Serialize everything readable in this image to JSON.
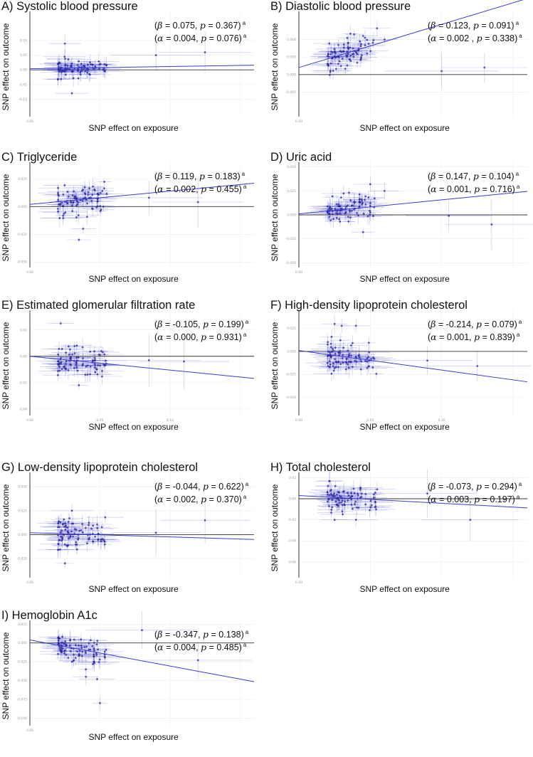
{
  "chart_data": [
    {
      "type": "scatter",
      "panel": "A",
      "title": "A) Systolic blood pressure",
      "xlabel": "SNP effect on exposure",
      "ylabel": "SNP effect on outcome",
      "stat_beta": "(β = 0.075, p = 0.367)",
      "stat_alpha": "(α = 0.004, p = 0.076)",
      "stat_mark": "a",
      "xlim": [
        0,
        0.16
      ],
      "ylim": [
        -0.16,
        0.2
      ],
      "x_ticks": [
        "0.00"
      ],
      "y_ticks": [
        "0.10",
        "0.05",
        "0.00",
        "-0.05",
        "-0.10"
      ],
      "y_tick_values": [
        0.1,
        0.05,
        0,
        -0.05,
        -0.1
      ],
      "intercept": 0.004,
      "slope": 0.075,
      "spread": 0.015,
      "seed": 11,
      "outliers": [
        [
          0.025,
          0.09
        ],
        [
          0.03,
          -0.08
        ],
        [
          0.09,
          0.05
        ],
        [
          0.125,
          0.06
        ]
      ]
    },
    {
      "type": "scatter",
      "panel": "B",
      "title": "B) Diastolic blood pressure",
      "xlabel": "SNP effect on exposure",
      "ylabel": "SNP effect on outcome",
      "stat_beta": "(β = 0.123, p = 0.091)",
      "stat_alpha": "(α = 0.002 , p = 0.338)",
      "stat_mark": "a",
      "xlim": [
        0,
        0.16
      ],
      "ylim": [
        -0.012,
        0.018
      ],
      "x_ticks": [
        "0.00"
      ],
      "y_ticks": [
        "0.010",
        "0.005",
        "0.000",
        "-0.005"
      ],
      "y_tick_values": [
        0.01,
        0.005,
        0,
        -0.005
      ],
      "intercept": 0.002,
      "slope": 0.123,
      "spread": 0.002,
      "seed": 23,
      "outliers": [
        [
          0.06,
          0.01
        ],
        [
          0.045,
          0.011
        ],
        [
          0.1,
          0.001
        ],
        [
          0.13,
          0.002
        ]
      ]
    },
    {
      "type": "scatter",
      "panel": "C",
      "title": "C) Triglyceride",
      "xlabel": "SNP effect on exposure",
      "ylabel": "SNP effect on outcome",
      "stat_beta": "(β = 0.119, p = 0.183)",
      "stat_alpha": "(α = 0.002, p = 0.455)",
      "stat_mark": "a",
      "xlim": [
        0,
        0.16
      ],
      "ylim": [
        -0.055,
        0.04
      ],
      "x_ticks": [
        "0.00"
      ],
      "y_ticks": [
        "0.025",
        "0.000",
        "-0.025",
        "-0.050"
      ],
      "y_tick_values": [
        0.025,
        0,
        -0.025,
        -0.05
      ],
      "intercept": 0.002,
      "slope": 0.119,
      "spread": 0.006,
      "seed": 37,
      "outliers": [
        [
          0.035,
          -0.03
        ],
        [
          0.038,
          -0.02
        ],
        [
          0.045,
          0.018
        ],
        [
          0.085,
          0.008
        ],
        [
          0.12,
          0.004
        ]
      ]
    },
    {
      "type": "scatter",
      "panel": "D",
      "title": "D) Uric acid",
      "xlabel": "SNP effect on exposure",
      "ylabel": "SNP effect on outcome",
      "stat_beta": "(β = 0.147, p = 0.104)",
      "stat_alpha": "(α = 0.001, p = 0.716)",
      "stat_mark": "a",
      "xlim": [
        0,
        0.16
      ],
      "ylim": [
        -0.055,
        0.055
      ],
      "x_ticks": [
        "0.00"
      ],
      "y_ticks": [
        "0.050",
        "0.025",
        "0.000",
        "-0.025",
        "-0.050"
      ],
      "y_tick_values": [
        0.05,
        0.025,
        0,
        -0.025,
        -0.05
      ],
      "intercept": 0.001,
      "slope": 0.147,
      "spread": 0.007,
      "seed": 41,
      "outliers": [
        [
          0.05,
          0.032
        ],
        [
          0.045,
          -0.018
        ],
        [
          0.06,
          0.025
        ],
        [
          0.105,
          -0.001
        ],
        [
          0.135,
          -0.01
        ]
      ]
    },
    {
      "type": "scatter",
      "panel": "E",
      "title": "E) Estimated glomerular filtration rate",
      "xlabel": "SNP effect on exposure",
      "ylabel": "SNP effect on outcome",
      "stat_beta": "(β = -0.105, p = 0.199)",
      "stat_alpha": "(α = 0.000, p = 0.931)",
      "stat_mark": "a",
      "xlim": [
        0,
        0.16
      ],
      "ylim": [
        -0.045,
        0.035
      ],
      "x_ticks": [
        "0.00",
        "0.05",
        "0.10"
      ],
      "x_tick_values": [
        0,
        0.05,
        0.1
      ],
      "y_ticks": [
        "0.02",
        "0.00",
        "-0.02",
        "-0.04"
      ],
      "y_tick_values": [
        0.02,
        0,
        -0.02,
        -0.04
      ],
      "intercept": 0.0,
      "slope": -0.105,
      "spread": 0.005,
      "seed": 53,
      "outliers": [
        [
          0.022,
          0.025
        ],
        [
          0.035,
          -0.022
        ],
        [
          0.05,
          0.001
        ],
        [
          0.085,
          -0.003
        ],
        [
          0.11,
          -0.004
        ]
      ]
    },
    {
      "type": "scatter",
      "panel": "F",
      "title": "F) High-density lipoprotein cholesterol",
      "xlabel": "SNP effect on exposure",
      "ylabel": "SNP effect on outcome",
      "stat_beta": "(β = -0.214, p = 0.079)",
      "stat_alpha": "(α = 0.001, p = 0.839)",
      "stat_mark": "a",
      "xlim": [
        0,
        0.16
      ],
      "ylim": [
        -0.07,
        0.045
      ],
      "x_ticks": [
        "0.00",
        "0.05",
        "0.10"
      ],
      "x_tick_values": [
        0,
        0.05,
        0.1
      ],
      "y_ticks": [
        "0.025",
        "0.000",
        "-0.025",
        "-0.050"
      ],
      "y_tick_values": [
        0.025,
        0,
        -0.025,
        -0.05
      ],
      "intercept": 0.001,
      "slope": -0.214,
      "spread": 0.007,
      "seed": 67,
      "outliers": [
        [
          0.025,
          0.03
        ],
        [
          0.03,
          0.028
        ],
        [
          0.04,
          0.028
        ],
        [
          0.035,
          -0.018
        ],
        [
          0.09,
          -0.01
        ],
        [
          0.125,
          -0.016
        ]
      ]
    },
    {
      "type": "scatter",
      "panel": "G",
      "title": "G) Low-density lipoprotein cholesterol",
      "xlabel": "SNP effect on exposure",
      "ylabel": "SNP effect on outcome",
      "stat_beta": "(β = -0.044, p = 0.622)",
      "stat_alpha": "(α = 0.002, p = 0.370)",
      "stat_mark": "a",
      "xlim": [
        0,
        0.16
      ],
      "ylim": [
        -0.045,
        0.065
      ],
      "x_ticks": [
        "0.00"
      ],
      "y_ticks": [
        "0.050",
        "0.025",
        "0.000",
        "-0.025"
      ],
      "y_tick_values": [
        0.05,
        0.025,
        0,
        -0.025
      ],
      "intercept": 0.002,
      "slope": -0.044,
      "spread": 0.008,
      "seed": 79,
      "outliers": [
        [
          0.025,
          -0.03
        ],
        [
          0.03,
          0.025
        ],
        [
          0.09,
          0.002
        ],
        [
          0.125,
          0.015
        ]
      ]
    },
    {
      "type": "scatter",
      "panel": "H",
      "title": "H) Total cholesterol",
      "xlabel": "SNP effect on exposure",
      "ylabel": "SNP effect on outcome",
      "stat_beta": "(β = -0.073, p = 0.294)",
      "stat_alpha": "(α = 0.003, p = 0.197)",
      "stat_mark": "a",
      "xlim": [
        0,
        0.16
      ],
      "ylim": [
        -0.075,
        0.025
      ],
      "x_ticks": [
        "0.00"
      ],
      "y_ticks": [
        "0.02",
        "0.00",
        "-0.02",
        "-0.04",
        "-0.06"
      ],
      "y_tick_values": [
        0.02,
        0,
        -0.02,
        -0.04,
        -0.06
      ],
      "intercept": 0.003,
      "slope": -0.073,
      "spread": 0.006,
      "seed": 83,
      "outliers": [
        [
          0.025,
          -0.02
        ],
        [
          0.04,
          -0.02
        ],
        [
          0.09,
          0.005
        ],
        [
          0.12,
          -0.02
        ]
      ]
    },
    {
      "type": "scatter",
      "panel": "I",
      "title": "I) Hemoglobin A1c",
      "xlabel": "SNP effect on exposure",
      "ylabel": "SNP effect on outcome",
      "stat_beta": "(β = -0.347, p = 0.138)",
      "stat_alpha": "(α = 0.004, p = 0.485)",
      "stat_mark": "a",
      "xlim": [
        0,
        0.16
      ],
      "ylim": [
        -0.11,
        0.03
      ],
      "x_ticks": [
        "0.00"
      ],
      "y_ticks": [
        "0.025",
        "0.000",
        "-0.025",
        "-0.050",
        "-0.075",
        "-0.100"
      ],
      "y_tick_values": [
        0.025,
        0,
        -0.025,
        -0.05,
        -0.075,
        -0.1
      ],
      "intercept": 0.004,
      "slope": -0.347,
      "spread": 0.007,
      "seed": 97,
      "outliers": [
        [
          0.04,
          -0.045
        ],
        [
          0.048,
          -0.048
        ],
        [
          0.045,
          -0.028
        ],
        [
          0.03,
          -0.025
        ],
        [
          0.04,
          -0.035
        ],
        [
          0.05,
          -0.08
        ],
        [
          0.08,
          0.017
        ],
        [
          0.12,
          -0.023
        ]
      ]
    }
  ]
}
